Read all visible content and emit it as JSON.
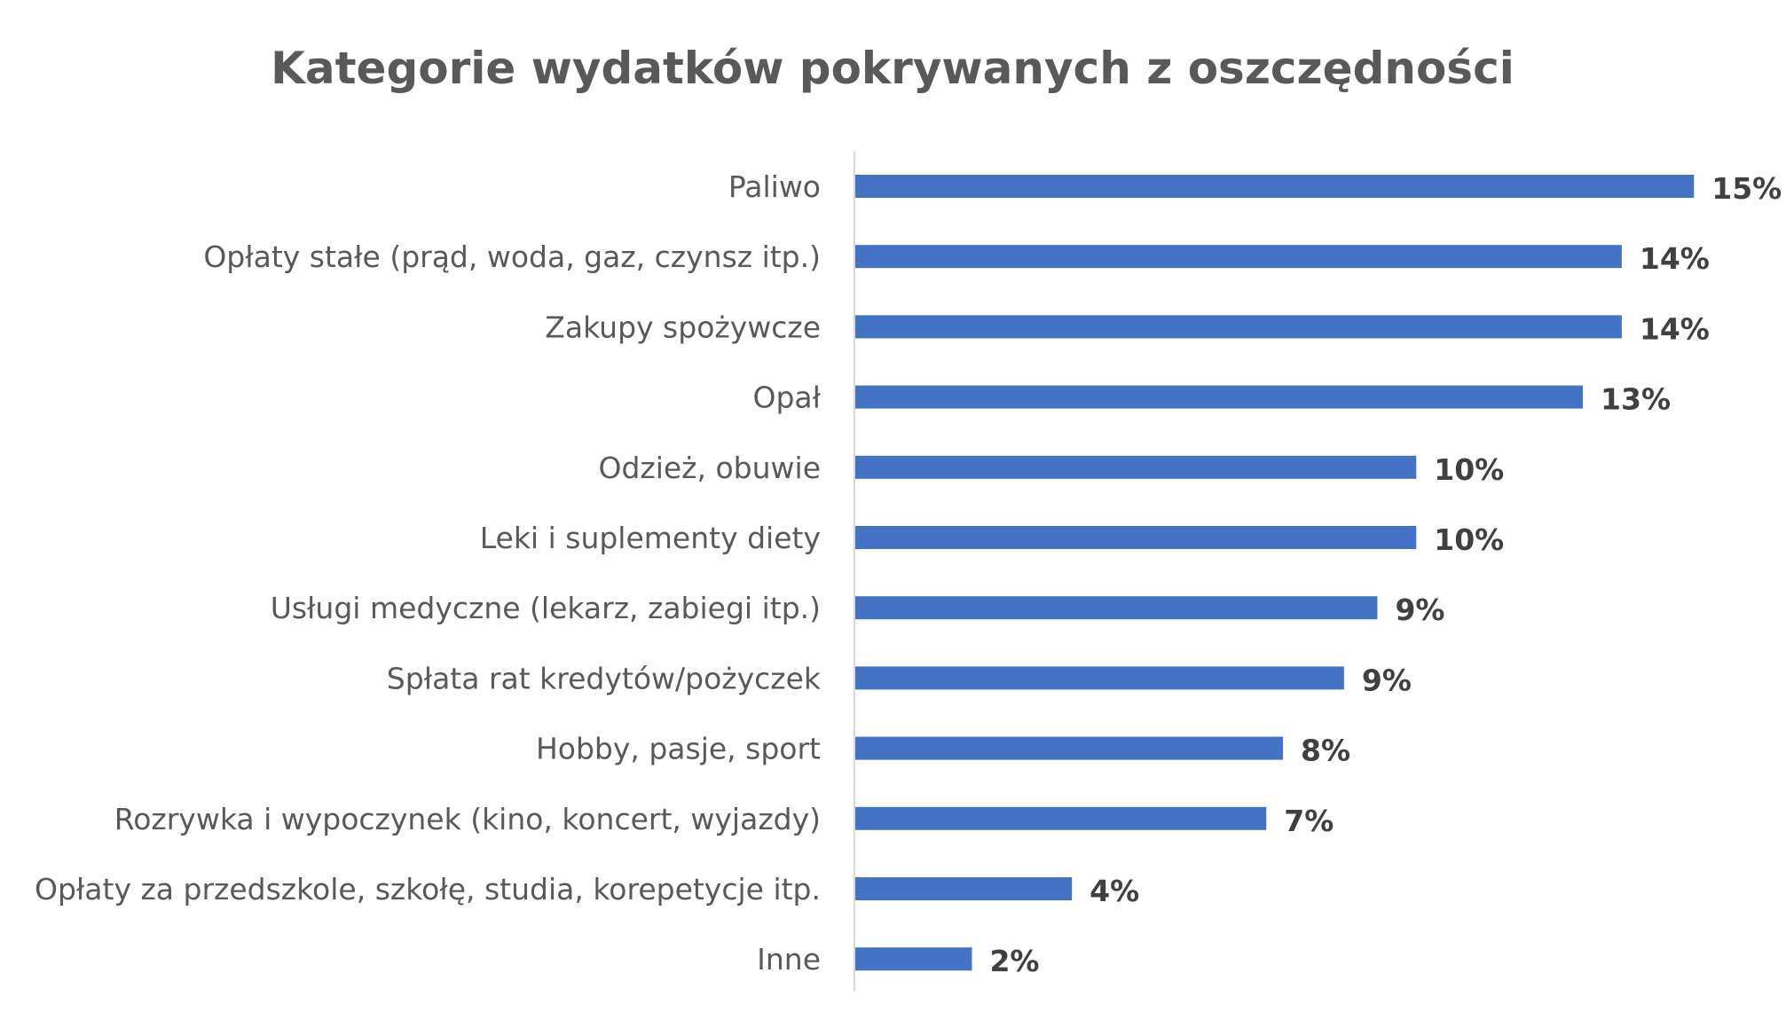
{
  "chart_data": {
    "type": "bar",
    "orientation": "horizontal",
    "title": "Kategorie wydatków pokrywanych z oszczędności",
    "categories": [
      "Paliwo",
      "Opłaty stałe (prąd, woda, gaz, czynsz itp.)",
      "Zakupy spożywcze",
      "Opał",
      "Odzież, obuwie",
      "Leki i suplementy diety",
      "Usługi medyczne (lekarz, zabiegi itp.)",
      "Spłata rat kredytów/pożyczek",
      "Hobby, pasje, sport",
      "Rozrywka i wypoczynek (kino, koncert, wyjazdy)",
      "Opłaty za przedszkole, szkołę, studia, korepetycje itp.",
      "Inne"
    ],
    "values": [
      15.1,
      13.8,
      13.8,
      13.1,
      10.1,
      10.1,
      9.4,
      8.8,
      7.7,
      7.4,
      3.9,
      2.1
    ],
    "data_labels": [
      "15%",
      "14%",
      "14%",
      "13%",
      "10%",
      "10%",
      "9%",
      "9%",
      "8%",
      "7%",
      "4%",
      "2%"
    ],
    "xlabel": "",
    "ylabel": "",
    "xlim": [
      0,
      16
    ],
    "grid": false,
    "legend": "none",
    "bar_color": "#4472C4",
    "axis_color": "#D9D9D9"
  }
}
